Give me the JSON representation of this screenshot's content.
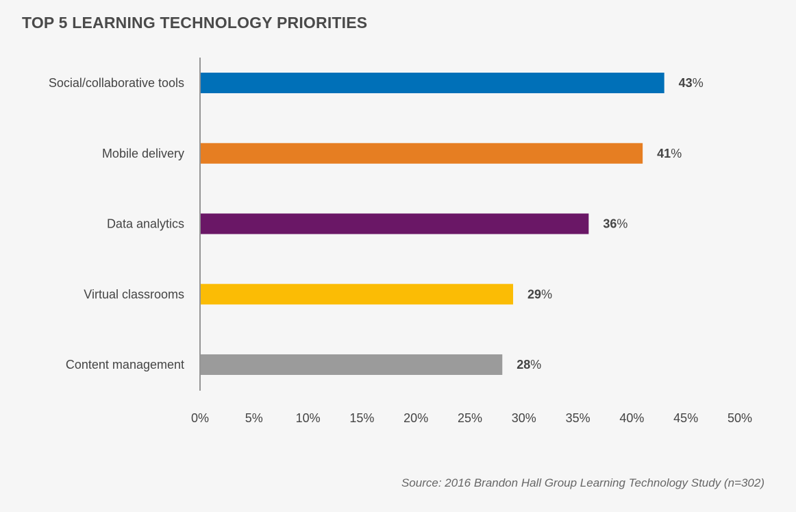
{
  "chart_data": {
    "type": "bar",
    "orientation": "horizontal",
    "title": "TOP 5 LEARNING TECHNOLOGY PRIORITIES",
    "categories": [
      "Social/collaborative tools",
      "Mobile delivery",
      "Data analytics",
      "Virtual classrooms",
      "Content management"
    ],
    "values": [
      43,
      41,
      36,
      29,
      28
    ],
    "value_labels": [
      "43",
      "41",
      "36",
      "29",
      "28"
    ],
    "value_suffix": "%",
    "colors": [
      "#0070b8",
      "#e67e22",
      "#6a1766",
      "#fbbc05",
      "#9b9b9b"
    ],
    "xlim": [
      0,
      50
    ],
    "xticks": [
      "0%",
      "5%",
      "10%",
      "15%",
      "20%",
      "25%",
      "30%",
      "35%",
      "40%",
      "45%",
      "50%"
    ],
    "grid": false,
    "legend": "none"
  },
  "source": "Source: 2016 Brandon Hall Group Learning Technology Study (n=302)"
}
